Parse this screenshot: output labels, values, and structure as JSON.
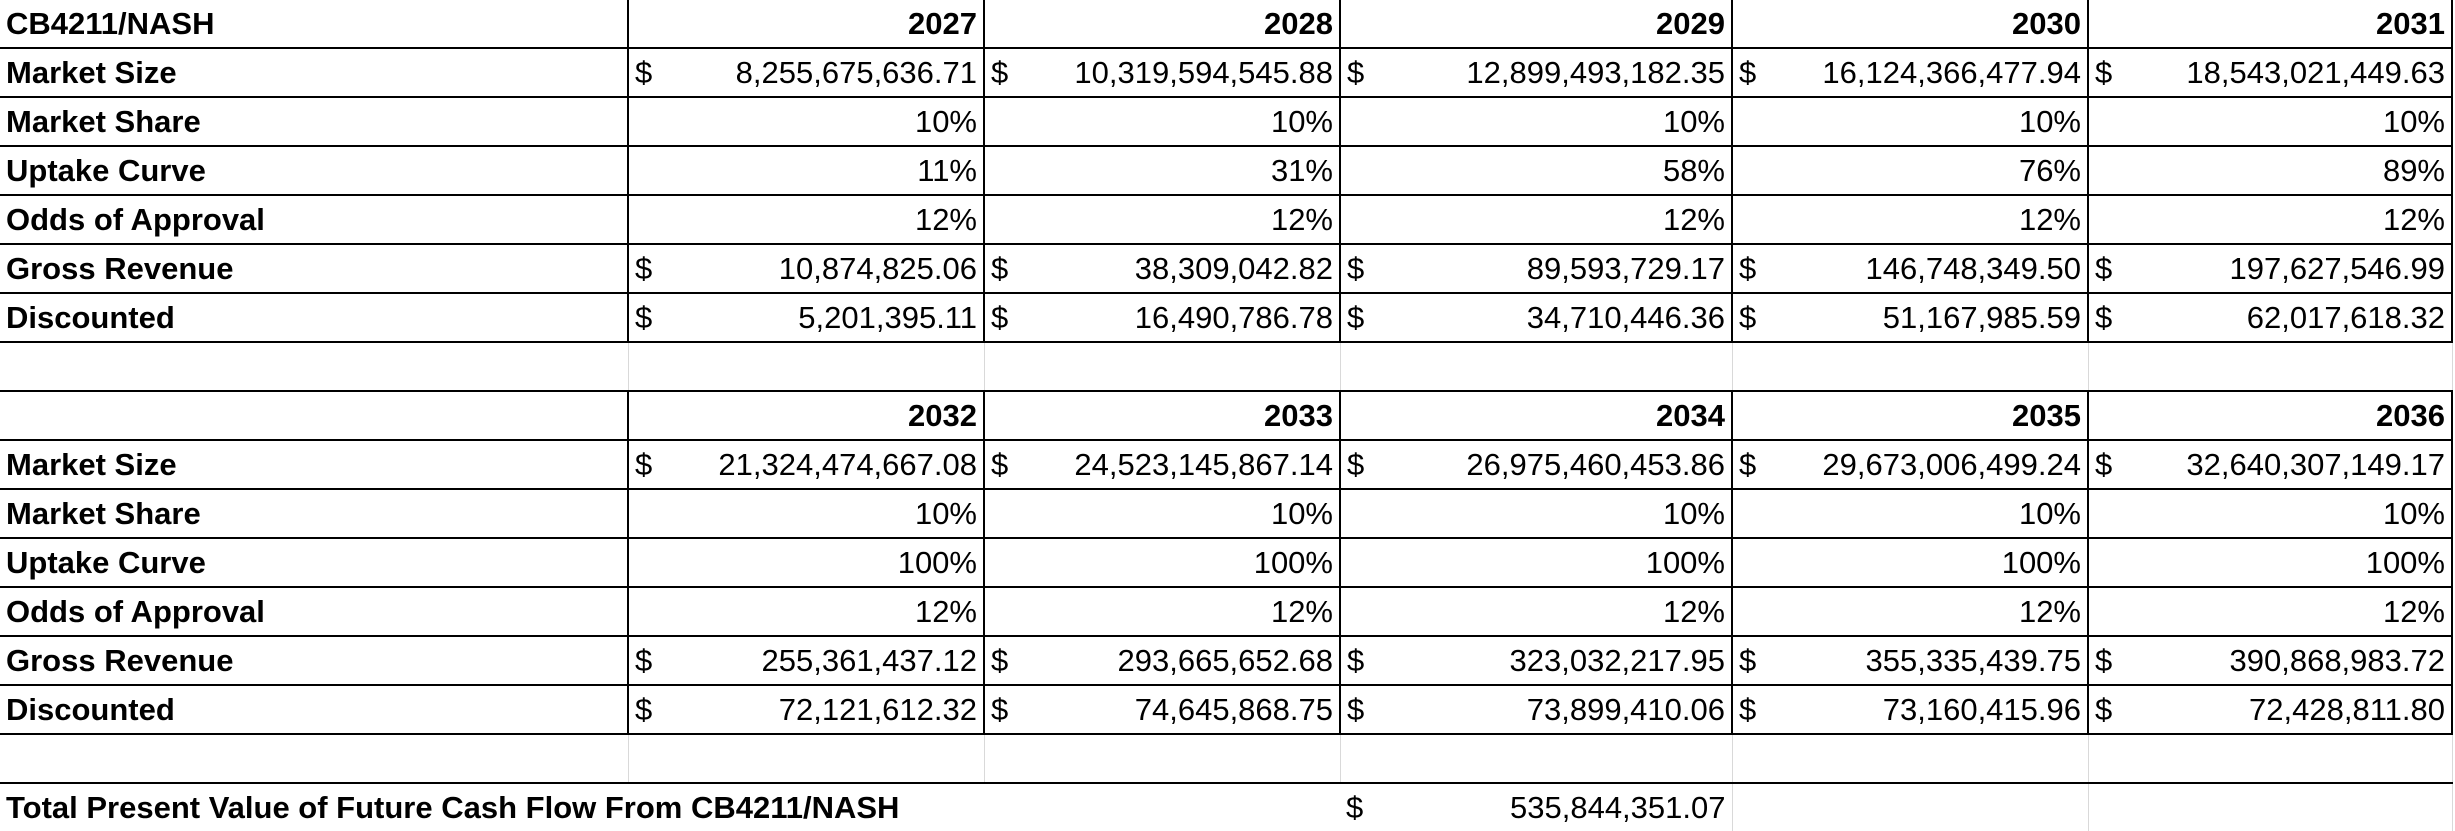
{
  "title": "CB4211/NASH",
  "row_labels": {
    "market_size": "Market Size",
    "market_share": "Market Share",
    "uptake_curve": "Uptake Curve",
    "odds_of_approval": "Odds of Approval",
    "gross_revenue": "Gross Revenue",
    "discounted": "Discounted"
  },
  "currency_symbol": "$",
  "block1": {
    "years": [
      "2027",
      "2028",
      "2029",
      "2030",
      "2031"
    ],
    "market_size": [
      "8,255,675,636.71",
      "10,319,594,545.88",
      "12,899,493,182.35",
      "16,124,366,477.94",
      "18,543,021,449.63"
    ],
    "market_share": [
      "10%",
      "10%",
      "10%",
      "10%",
      "10%"
    ],
    "uptake_curve": [
      "11%",
      "31%",
      "58%",
      "76%",
      "89%"
    ],
    "odds_of_approval": [
      "12%",
      "12%",
      "12%",
      "12%",
      "12%"
    ],
    "gross_revenue": [
      "10,874,825.06",
      "38,309,042.82",
      "89,593,729.17",
      "146,748,349.50",
      "197,627,546.99"
    ],
    "discounted": [
      "5,201,395.11",
      "16,490,786.78",
      "34,710,446.36",
      "51,167,985.59",
      "62,017,618.32"
    ]
  },
  "block2": {
    "years": [
      "2032",
      "2033",
      "2034",
      "2035",
      "2036"
    ],
    "market_size": [
      "21,324,474,667.08",
      "24,523,145,867.14",
      "26,975,460,453.86",
      "29,673,006,499.24",
      "32,640,307,149.17"
    ],
    "market_share": [
      "10%",
      "10%",
      "10%",
      "10%",
      "10%"
    ],
    "uptake_curve": [
      "100%",
      "100%",
      "100%",
      "100%",
      "100%"
    ],
    "odds_of_approval": [
      "12%",
      "12%",
      "12%",
      "12%",
      "12%"
    ],
    "gross_revenue": [
      "255,361,437.12",
      "293,665,652.68",
      "323,032,217.95",
      "355,335,439.75",
      "390,868,983.72"
    ],
    "discounted": [
      "72,121,612.32",
      "74,645,868.75",
      "73,899,410.06",
      "73,160,415.96",
      "72,428,811.80"
    ]
  },
  "total": {
    "label": "Total Present Value of Future Cash Flow From CB4211/NASH",
    "value": "535,844,351.07"
  }
}
